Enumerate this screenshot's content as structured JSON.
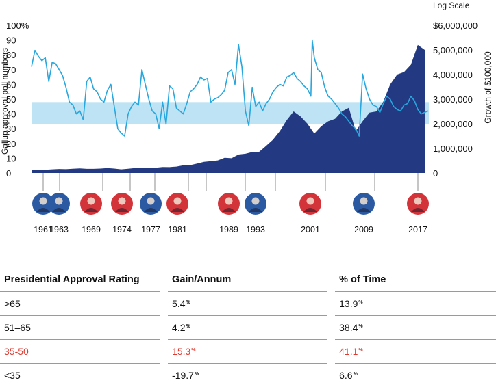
{
  "chart_data": {
    "type": "area",
    "title": "",
    "left_axis": {
      "label": "Gallup approval poll numbers",
      "ticks": [
        "100%",
        "90",
        "80",
        "70",
        "60",
        "50",
        "40",
        "30",
        "20",
        "10",
        "0"
      ],
      "range": [
        0,
        100
      ]
    },
    "right_axis": {
      "label": "Growth of $100,000",
      "scale_note": "Log Scale",
      "ticks": [
        "$6,000,000",
        "5,000,000",
        "4,000,000",
        "3,000,000",
        "2,000,000",
        "1,000,000",
        "0"
      ],
      "range": [
        0,
        6000000
      ]
    },
    "highlight_band": {
      "from": 33,
      "to": 48,
      "color": "#bde3f4"
    },
    "colors": {
      "approval_line": "#27a7de",
      "growth_area": "#233a82",
      "band": "#bde3f4"
    },
    "presidential_terms": [
      "1961",
      "1963",
      "1969",
      "1974",
      "1977",
      "1981",
      "1989",
      "1993",
      "2001",
      "2009",
      "2017"
    ],
    "president_party_colors": [
      "#2b5aa3",
      "#2b5aa3",
      "#d3343a",
      "#d3343a",
      "#2b5aa3",
      "#d3343a",
      "#d3343a",
      "#2b5aa3",
      "#d3343a",
      "#2b5aa3",
      "#d3343a"
    ],
    "series": [
      {
        "name": "Gallup approval",
        "axis": "left",
        "x": [
          1961.0,
          1961.5,
          1962.0,
          1962.5,
          1963.0,
          1963.5,
          1964.0,
          1964.5,
          1965.0,
          1965.5,
          1966.0,
          1966.5,
          1967.0,
          1967.5,
          1968.0,
          1968.5,
          1969.0,
          1969.5,
          1970.0,
          1970.5,
          1971.0,
          1971.5,
          1972.0,
          1972.5,
          1973.0,
          1973.5,
          1974.0,
          1974.5,
          1975.0,
          1975.5,
          1976.0,
          1976.5,
          1977.0,
          1977.5,
          1978.0,
          1978.5,
          1979.0,
          1979.5,
          1980.0,
          1980.5,
          1981.0,
          1981.5,
          1982.0,
          1982.5,
          1983.0,
          1983.5,
          1984.0,
          1984.5,
          1985.0,
          1985.5,
          1986.0,
          1986.5,
          1987.0,
          1987.5,
          1988.0,
          1988.5,
          1989.0,
          1989.5,
          1990.0,
          1990.5,
          1991.0,
          1991.5,
          1992.0,
          1992.5,
          1993.0,
          1993.5,
          1994.0,
          1994.5,
          1995.0,
          1995.5,
          1996.0,
          1996.5,
          1997.0,
          1997.5,
          1998.0,
          1998.5,
          1999.0,
          1999.5,
          2000.0,
          2000.5,
          2001.0,
          2001.5,
          2001.7,
          2002.0,
          2002.5,
          2003.0,
          2003.5,
          2004.0,
          2004.5,
          2005.0,
          2005.5,
          2006.0,
          2006.5,
          2007.0,
          2007.5,
          2008.0,
          2008.5,
          2009.0,
          2009.5,
          2010.0,
          2010.5,
          2011.0,
          2011.5,
          2012.0,
          2012.5,
          2013.0,
          2013.5,
          2014.0,
          2014.5,
          2015.0,
          2015.5,
          2016.0,
          2016.5,
          2017.0,
          2017.5,
          2018.0,
          2018.5
        ],
        "y": [
          72,
          83,
          79,
          76,
          78,
          62,
          75,
          74,
          70,
          66,
          58,
          48,
          46,
          40,
          42,
          36,
          62,
          65,
          57,
          55,
          50,
          48,
          56,
          60,
          45,
          30,
          27,
          25,
          40,
          45,
          48,
          46,
          70,
          60,
          50,
          42,
          40,
          30,
          48,
          33,
          59,
          57,
          44,
          42,
          40,
          47,
          55,
          57,
          60,
          65,
          63,
          64,
          48,
          50,
          51,
          53,
          56,
          68,
          70,
          60,
          87,
          72,
          42,
          32,
          58,
          45,
          48,
          42,
          47,
          50,
          55,
          58,
          60,
          59,
          65,
          66,
          68,
          64,
          62,
          59,
          57,
          52,
          90,
          78,
          70,
          68,
          58,
          52,
          50,
          47,
          44,
          40,
          38,
          35,
          32,
          30,
          25,
          67,
          57,
          50,
          46,
          45,
          41,
          47,
          52,
          50,
          45,
          43,
          42,
          46,
          47,
          52,
          49,
          43,
          40,
          41,
          42
        ]
      },
      {
        "name": "Growth of $100,000",
        "axis": "right",
        "x": [
          1961,
          1962,
          1963,
          1964,
          1965,
          1966,
          1967,
          1968,
          1969,
          1970,
          1971,
          1972,
          1973,
          1974,
          1975,
          1976,
          1977,
          1978,
          1979,
          1980,
          1981,
          1982,
          1983,
          1984,
          1985,
          1986,
          1987,
          1988,
          1989,
          1990,
          1991,
          1992,
          1993,
          1994,
          1995,
          1996,
          1997,
          1998,
          1999,
          2000,
          2001,
          2002,
          2003,
          2004,
          2005,
          2006,
          2007,
          2008,
          2009,
          2010,
          2011,
          2012,
          2013,
          2014,
          2015,
          2016,
          2017,
          2018
        ],
        "y": [
          120000,
          118000,
          130000,
          150000,
          165000,
          155000,
          175000,
          185000,
          170000,
          170000,
          180000,
          200000,
          180000,
          150000,
          175000,
          200000,
          195000,
          200000,
          215000,
          245000,
          240000,
          260000,
          310000,
          320000,
          380000,
          450000,
          480000,
          510000,
          620000,
          600000,
          750000,
          780000,
          850000,
          860000,
          1100000,
          1350000,
          1700000,
          2150000,
          2500000,
          2300000,
          2000000,
          1600000,
          1900000,
          2100000,
          2200000,
          2500000,
          2650000,
          1700000,
          2100000,
          2450000,
          2500000,
          2900000,
          3600000,
          4000000,
          4100000,
          4400000,
          5200000,
          5000000
        ]
      }
    ]
  },
  "table": {
    "headers": [
      "Presidential Approval Rating",
      "Gain/Annum",
      "% of Time"
    ],
    "rows": [
      {
        "rating": ">65",
        "gain": "5.4",
        "gain_mark": "%",
        "time": "13.9",
        "time_mark": "%"
      },
      {
        "rating": "51–65",
        "gain": "4.2",
        "gain_mark": "%",
        "time": "38.4",
        "time_mark": "%"
      },
      {
        "rating": "35-50",
        "gain": "15.3",
        "gain_mark": "%",
        "time": "41.1",
        "time_mark": "%"
      },
      {
        "rating": "<35",
        "gain": "-19.7",
        "gain_mark": "%",
        "time": "6.6",
        "time_mark": "%"
      }
    ],
    "highlight_color": "#e03a2f"
  }
}
